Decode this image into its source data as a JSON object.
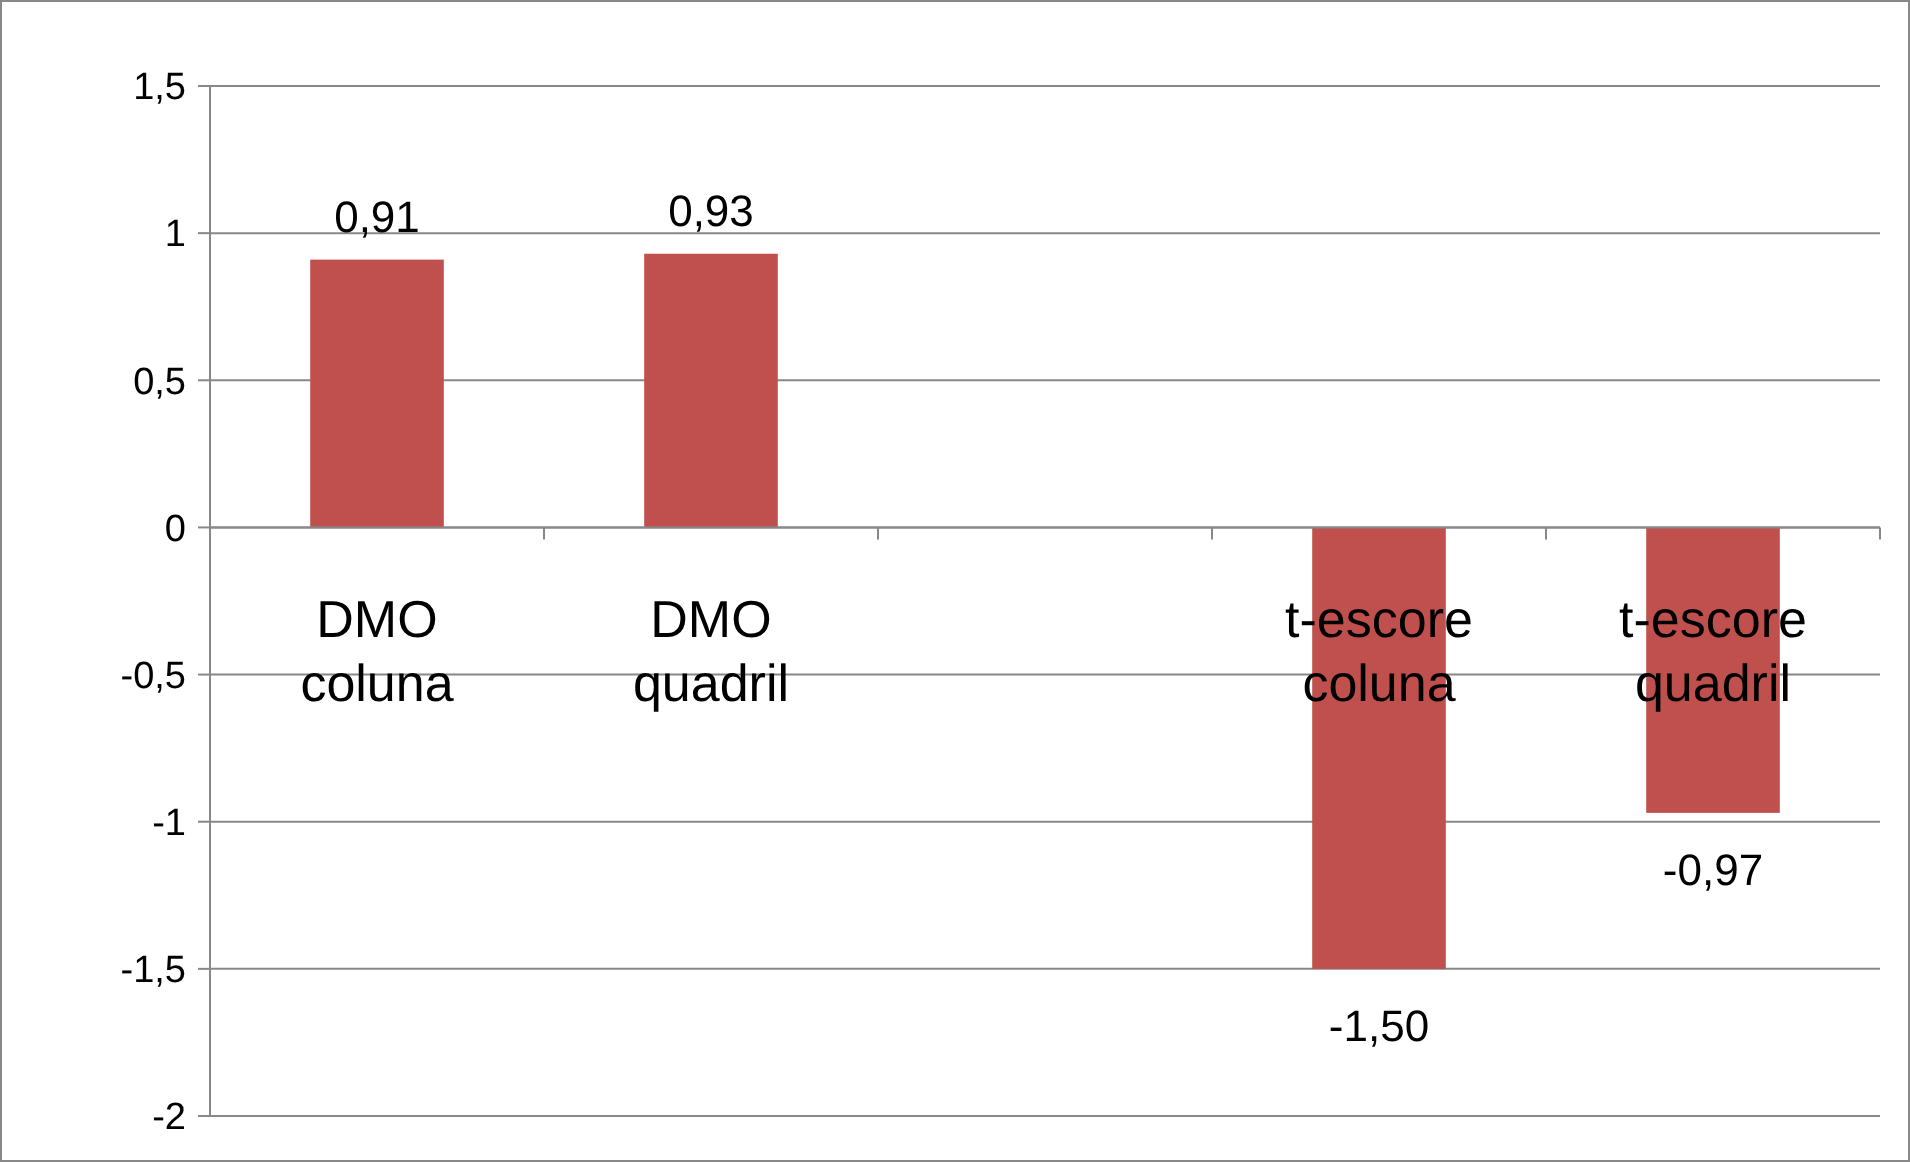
{
  "chart_data": {
    "type": "bar",
    "categories": [
      "DMO coluna",
      "DMO quadril",
      null,
      "t-escore coluna",
      "t-escore quadril"
    ],
    "values": [
      0.91,
      0.93,
      null,
      -1.5,
      -0.97
    ],
    "value_labels": [
      "0,91",
      "0,93",
      null,
      "-1,50",
      "-0,97"
    ],
    "color": "#c0504d",
    "ylim": [
      -2,
      1.5
    ],
    "yticks": [
      {
        "value": -2,
        "label": "-2"
      },
      {
        "value": -1.5,
        "label": "-1,5"
      },
      {
        "value": -1,
        "label": "-1"
      },
      {
        "value": -0.5,
        "label": "-0,5"
      },
      {
        "value": 0,
        "label": "0"
      },
      {
        "value": 0.5,
        "label": "0,5"
      },
      {
        "value": 1,
        "label": "1"
      },
      {
        "value": 1.5,
        "label": "1,5"
      }
    ],
    "grid": "y"
  }
}
